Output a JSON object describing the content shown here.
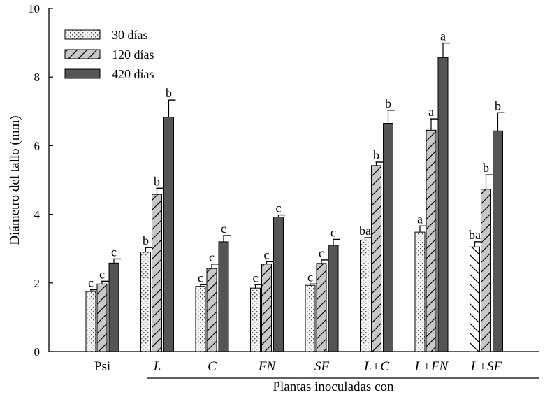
{
  "chart_data": {
    "type": "bar",
    "title": "",
    "xlabel": "Plantas inoculadas con",
    "ylabel": "Diámetro del tallo (mm)",
    "ylim": [
      0,
      10
    ],
    "yticks": [
      0,
      2,
      4,
      6,
      8,
      10
    ],
    "grid": false,
    "legend_position": "top-left",
    "categories": [
      "Psi",
      "L",
      "C",
      "FN",
      "SF",
      "L+C",
      "L+FN",
      "L+SF"
    ],
    "categories_italic": [
      false,
      true,
      true,
      true,
      true,
      true,
      true,
      true
    ],
    "series": [
      {
        "name": "30 días",
        "pattern": "dots",
        "fill": "#f2f2f2",
        "values": [
          1.75,
          2.9,
          1.9,
          1.85,
          1.93,
          3.25,
          3.48,
          3.05
        ],
        "errors": [
          0.05,
          0.13,
          0.05,
          0.1,
          0.04,
          0.07,
          0.18,
          0.15
        ],
        "letters": [
          "c",
          "b",
          "c",
          "c",
          "c",
          "ba",
          "a",
          "ba"
        ]
      },
      {
        "name": "120 días",
        "pattern": "diagonal",
        "fill": "#c8c8c8",
        "values": [
          1.97,
          4.58,
          2.42,
          2.55,
          2.57,
          5.42,
          6.45,
          4.73
        ],
        "errors": [
          0.08,
          0.18,
          0.13,
          0.07,
          0.1,
          0.1,
          0.33,
          0.42
        ],
        "letters": [
          "c",
          "b",
          "c",
          "c",
          "c",
          "b",
          "a",
          "b"
        ]
      },
      {
        "name": "420 días",
        "pattern": "solid",
        "fill": "#555555",
        "values": [
          2.58,
          6.83,
          3.2,
          3.92,
          3.1,
          6.65,
          8.57,
          6.43
        ],
        "errors": [
          0.12,
          0.5,
          0.18,
          0.06,
          0.17,
          0.38,
          0.42,
          0.53
        ],
        "letters": [
          "c",
          "b",
          "c",
          "c",
          "c",
          "b",
          "a",
          "b"
        ]
      }
    ]
  }
}
